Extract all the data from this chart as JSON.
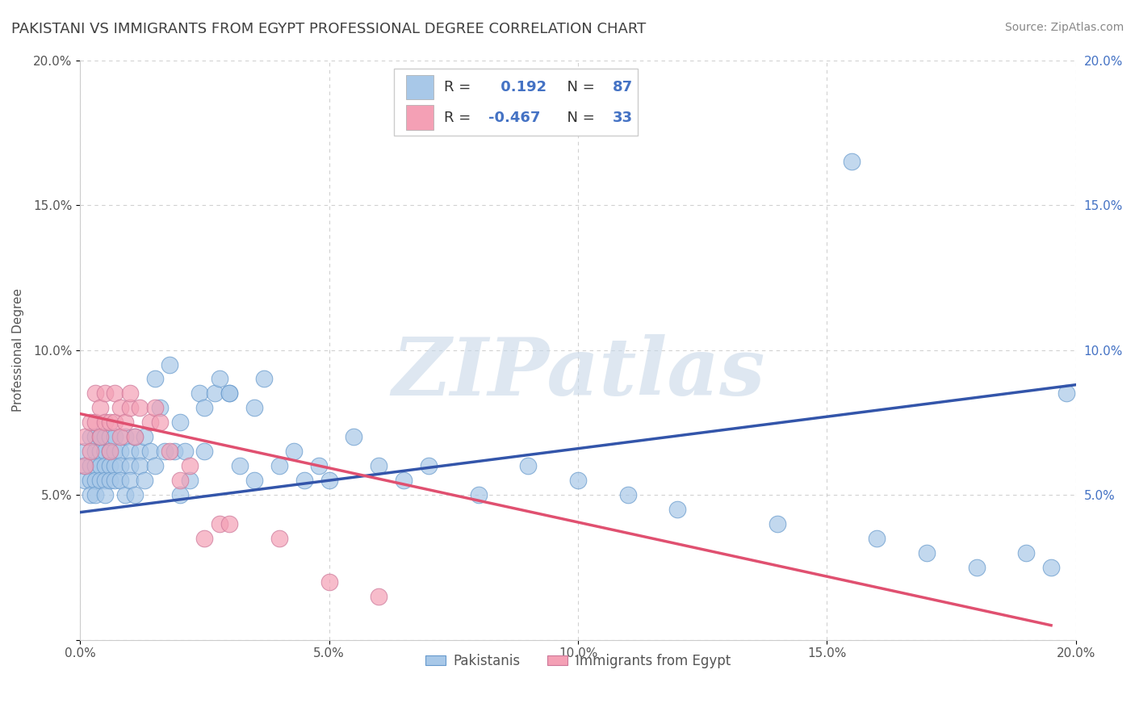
{
  "title": "PAKISTANI VS IMMIGRANTS FROM EGYPT PROFESSIONAL DEGREE CORRELATION CHART",
  "source": "Source: ZipAtlas.com",
  "ylabel": "Professional Degree",
  "watermark": "ZIPatlas",
  "xlim": [
    0.0,
    0.2
  ],
  "ylim": [
    0.0,
    0.2
  ],
  "xticks": [
    0.0,
    0.05,
    0.1,
    0.15,
    0.2
  ],
  "yticks": [
    0.0,
    0.05,
    0.1,
    0.15,
    0.2
  ],
  "xticklabels": [
    "0.0%",
    "5.0%",
    "10.0%",
    "15.0%",
    "20.0%"
  ],
  "yticklabels_left": [
    "",
    "5.0%",
    "10.0%",
    "15.0%",
    "20.0%"
  ],
  "yticklabels_right": [
    "",
    "5.0%",
    "10.0%",
    "15.0%",
    "20.0%"
  ],
  "blue_color": "#a8c8e8",
  "pink_color": "#f4a0b5",
  "blue_line_color": "#3355aa",
  "pink_line_color": "#e05070",
  "legend_blue_R": "0.192",
  "legend_blue_N": "87",
  "legend_pink_R": "-0.467",
  "legend_pink_N": "33",
  "legend_label_blue": "Pakistanis",
  "legend_label_pink": "Immigrants from Egypt",
  "pakistani_x": [
    0.001,
    0.001,
    0.001,
    0.002,
    0.002,
    0.002,
    0.002,
    0.003,
    0.003,
    0.003,
    0.003,
    0.003,
    0.004,
    0.004,
    0.004,
    0.004,
    0.005,
    0.005,
    0.005,
    0.005,
    0.005,
    0.006,
    0.006,
    0.006,
    0.006,
    0.007,
    0.007,
    0.007,
    0.007,
    0.008,
    0.008,
    0.008,
    0.009,
    0.009,
    0.01,
    0.01,
    0.01,
    0.011,
    0.011,
    0.012,
    0.012,
    0.013,
    0.013,
    0.014,
    0.015,
    0.015,
    0.016,
    0.017,
    0.018,
    0.019,
    0.02,
    0.021,
    0.022,
    0.024,
    0.025,
    0.027,
    0.028,
    0.03,
    0.032,
    0.035,
    0.037,
    0.04,
    0.043,
    0.045,
    0.048,
    0.05,
    0.055,
    0.06,
    0.065,
    0.07,
    0.08,
    0.09,
    0.1,
    0.11,
    0.12,
    0.14,
    0.155,
    0.16,
    0.17,
    0.18,
    0.19,
    0.195,
    0.198,
    0.02,
    0.025,
    0.03,
    0.035
  ],
  "pakistani_y": [
    0.06,
    0.055,
    0.065,
    0.06,
    0.055,
    0.07,
    0.05,
    0.065,
    0.06,
    0.055,
    0.07,
    0.05,
    0.065,
    0.06,
    0.055,
    0.07,
    0.065,
    0.06,
    0.055,
    0.07,
    0.05,
    0.065,
    0.06,
    0.055,
    0.07,
    0.065,
    0.06,
    0.055,
    0.07,
    0.065,
    0.06,
    0.055,
    0.07,
    0.05,
    0.065,
    0.06,
    0.055,
    0.07,
    0.05,
    0.065,
    0.06,
    0.055,
    0.07,
    0.065,
    0.09,
    0.06,
    0.08,
    0.065,
    0.095,
    0.065,
    0.075,
    0.065,
    0.055,
    0.085,
    0.065,
    0.085,
    0.09,
    0.085,
    0.06,
    0.055,
    0.09,
    0.06,
    0.065,
    0.055,
    0.06,
    0.055,
    0.07,
    0.06,
    0.055,
    0.06,
    0.05,
    0.06,
    0.055,
    0.05,
    0.045,
    0.04,
    0.165,
    0.035,
    0.03,
    0.025,
    0.03,
    0.025,
    0.085,
    0.05,
    0.08,
    0.085,
    0.08
  ],
  "egypt_x": [
    0.001,
    0.001,
    0.002,
    0.002,
    0.003,
    0.003,
    0.004,
    0.004,
    0.005,
    0.005,
    0.006,
    0.006,
    0.007,
    0.007,
    0.008,
    0.008,
    0.009,
    0.01,
    0.01,
    0.011,
    0.012,
    0.014,
    0.015,
    0.016,
    0.018,
    0.02,
    0.022,
    0.025,
    0.028,
    0.03,
    0.04,
    0.05,
    0.06
  ],
  "egypt_y": [
    0.06,
    0.07,
    0.065,
    0.075,
    0.075,
    0.085,
    0.07,
    0.08,
    0.075,
    0.085,
    0.065,
    0.075,
    0.075,
    0.085,
    0.07,
    0.08,
    0.075,
    0.08,
    0.085,
    0.07,
    0.08,
    0.075,
    0.08,
    0.075,
    0.065,
    0.055,
    0.06,
    0.035,
    0.04,
    0.04,
    0.035,
    0.02,
    0.015
  ],
  "blue_trend_x": [
    0.0,
    0.2
  ],
  "blue_trend_y": [
    0.044,
    0.088
  ],
  "pink_trend_x": [
    0.0,
    0.195
  ],
  "pink_trend_y": [
    0.078,
    0.005
  ],
  "background_color": "#ffffff",
  "grid_color": "#cccccc",
  "title_color": "#404040",
  "title_fontsize": 13,
  "axis_label_fontsize": 11,
  "tick_fontsize": 11,
  "source_fontsize": 10
}
